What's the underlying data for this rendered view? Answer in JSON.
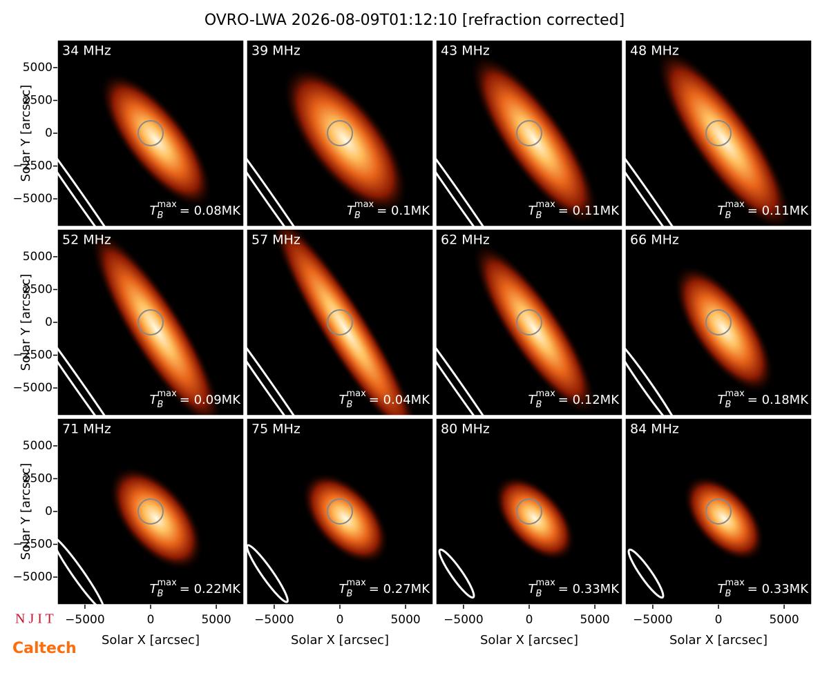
{
  "title": "OVRO-LWA 2026-08-09T01:12:10 [refraction corrected]",
  "axes": {
    "xlabel": "Solar X [arcsec]",
    "ylabel": "Solar Y [arcsec]",
    "xlim": [
      -7100,
      7100
    ],
    "ylim": [
      -7100,
      7100
    ],
    "xticks": [
      {
        "value": -5000,
        "label": "−5000"
      },
      0,
      5000
    ],
    "yticks": [
      {
        "value": -5000,
        "label": "−5000"
      },
      {
        "value": -2500,
        "label": "−2500"
      },
      0,
      2500,
      5000
    ]
  },
  "tb_symbol": {
    "base": "T",
    "sub": "B",
    "sup": "max"
  },
  "panels": [
    {
      "label": "34 MHz",
      "tb": "= 0.08MK"
    },
    {
      "label": "39 MHz",
      "tb": "= 0.1MK"
    },
    {
      "label": "43 MHz",
      "tb": "= 0.11MK"
    },
    {
      "label": "48 MHz",
      "tb": "= 0.11MK"
    },
    {
      "label": "52 MHz",
      "tb": "= 0.09MK"
    },
    {
      "label": "57 MHz",
      "tb": "= 0.04MK"
    },
    {
      "label": "62 MHz",
      "tb": "= 0.12MK"
    },
    {
      "label": "66 MHz",
      "tb": "= 0.18MK"
    },
    {
      "label": "71 MHz",
      "tb": "= 0.22MK"
    },
    {
      "label": "75 MHz",
      "tb": "= 0.27MK"
    },
    {
      "label": "80 MHz",
      "tb": "= 0.33MK"
    },
    {
      "label": "84 MHz",
      "tb": "= 0.33MK"
    }
  ],
  "logos": [
    "N J I T",
    "Caltech"
  ]
}
